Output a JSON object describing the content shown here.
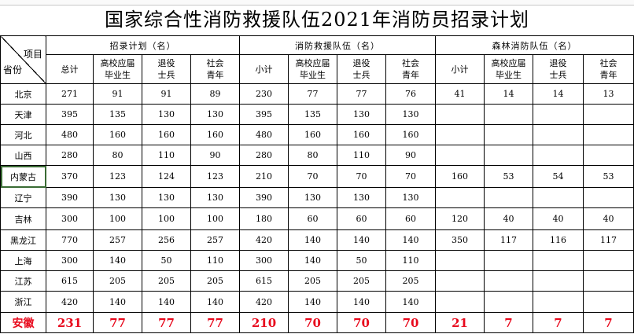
{
  "title": "国家综合性消防救援队伍2021年消防员招录计划",
  "header": {
    "corner_item": "项目",
    "corner_province": "省份",
    "groups": [
      "招录计划（名）",
      "消防救援队伍（名）",
      "森林消防队伍（名）"
    ],
    "sub_columns": [
      "总计",
      "高校应届\n毕业生",
      "退役\n士兵",
      "社会\n青年",
      "小计",
      "高校应届\n毕业生",
      "退役\n士兵",
      "社会\n青年",
      "小计",
      "高校应届\n毕业生",
      "退役\n士兵",
      "社会\n青年"
    ]
  },
  "rows": [
    {
      "province": "北京",
      "values": [
        "271",
        "91",
        "91",
        "89",
        "230",
        "77",
        "77",
        "76",
        "41",
        "14",
        "14",
        "13"
      ]
    },
    {
      "province": "天津",
      "values": [
        "395",
        "135",
        "130",
        "130",
        "395",
        "135",
        "130",
        "130",
        "",
        "",
        "",
        ""
      ]
    },
    {
      "province": "河北",
      "values": [
        "480",
        "160",
        "160",
        "160",
        "480",
        "160",
        "160",
        "160",
        "",
        "",
        "",
        ""
      ]
    },
    {
      "province": "山西",
      "values": [
        "280",
        "80",
        "110",
        "90",
        "280",
        "80",
        "110",
        "90",
        "",
        "",
        "",
        ""
      ]
    },
    {
      "province": "内蒙古",
      "values": [
        "370",
        "123",
        "124",
        "123",
        "210",
        "70",
        "70",
        "70",
        "160",
        "53",
        "54",
        "53"
      ]
    },
    {
      "province": "辽宁",
      "values": [
        "390",
        "130",
        "130",
        "130",
        "390",
        "130",
        "130",
        "130",
        "",
        "",
        "",
        ""
      ]
    },
    {
      "province": "吉林",
      "values": [
        "300",
        "100",
        "100",
        "100",
        "180",
        "60",
        "60",
        "60",
        "120",
        "40",
        "40",
        "40"
      ]
    },
    {
      "province": "黑龙江",
      "values": [
        "770",
        "257",
        "256",
        "257",
        "420",
        "140",
        "140",
        "140",
        "350",
        "117",
        "116",
        "117"
      ]
    },
    {
      "province": "上海",
      "values": [
        "300",
        "140",
        "50",
        "110",
        "300",
        "140",
        "50",
        "110",
        "",
        "",
        "",
        ""
      ]
    },
    {
      "province": "江苏",
      "values": [
        "615",
        "205",
        "205",
        "205",
        "615",
        "205",
        "205",
        "205",
        "",
        "",
        "",
        ""
      ]
    },
    {
      "province": "浙江",
      "values": [
        "420",
        "140",
        "140",
        "140",
        "420",
        "140",
        "140",
        "140",
        "",
        "",
        "",
        ""
      ]
    },
    {
      "province": "安徽",
      "values": [
        "231",
        "77",
        "77",
        "77",
        "210",
        "70",
        "70",
        "70",
        "21",
        "7",
        "7",
        "7"
      ],
      "highlight": true
    }
  ],
  "colors": {
    "highlight_text": "#e8091c",
    "border": "#000000",
    "selection": "#3a6b34"
  }
}
